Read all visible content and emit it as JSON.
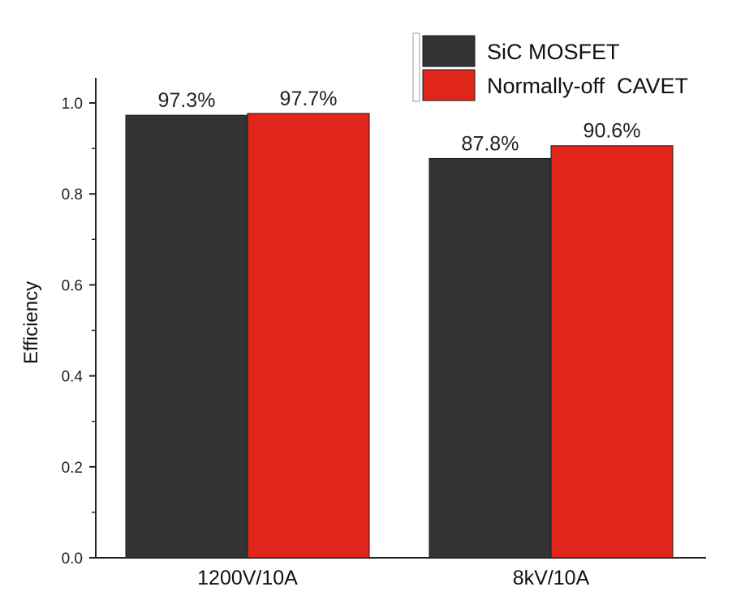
{
  "chart_data": {
    "type": "bar",
    "categories": [
      "1200V/10A",
      "8kV/10A"
    ],
    "series": [
      {
        "name": "SiC MOSFET",
        "color": "#333333",
        "values": [
          0.973,
          0.878
        ],
        "labels": [
          "97.3%",
          "87.8%"
        ]
      },
      {
        "name": "Normally-off  CAVET",
        "color": "#e0251b",
        "values": [
          0.977,
          0.906
        ],
        "labels": [
          "97.7%",
          "90.6%"
        ]
      }
    ],
    "title": "",
    "xlabel": "",
    "ylabel": "Efficiency",
    "ylim": [
      0,
      1.05
    ],
    "yticks": [
      0.0,
      0.2,
      0.4,
      0.6,
      0.8,
      1.0
    ],
    "ytick_labels": [
      "0.0",
      "0.2",
      "0.4",
      "0.6",
      "0.8",
      "1.0"
    ],
    "grid": false,
    "legend_position": "top-right"
  }
}
